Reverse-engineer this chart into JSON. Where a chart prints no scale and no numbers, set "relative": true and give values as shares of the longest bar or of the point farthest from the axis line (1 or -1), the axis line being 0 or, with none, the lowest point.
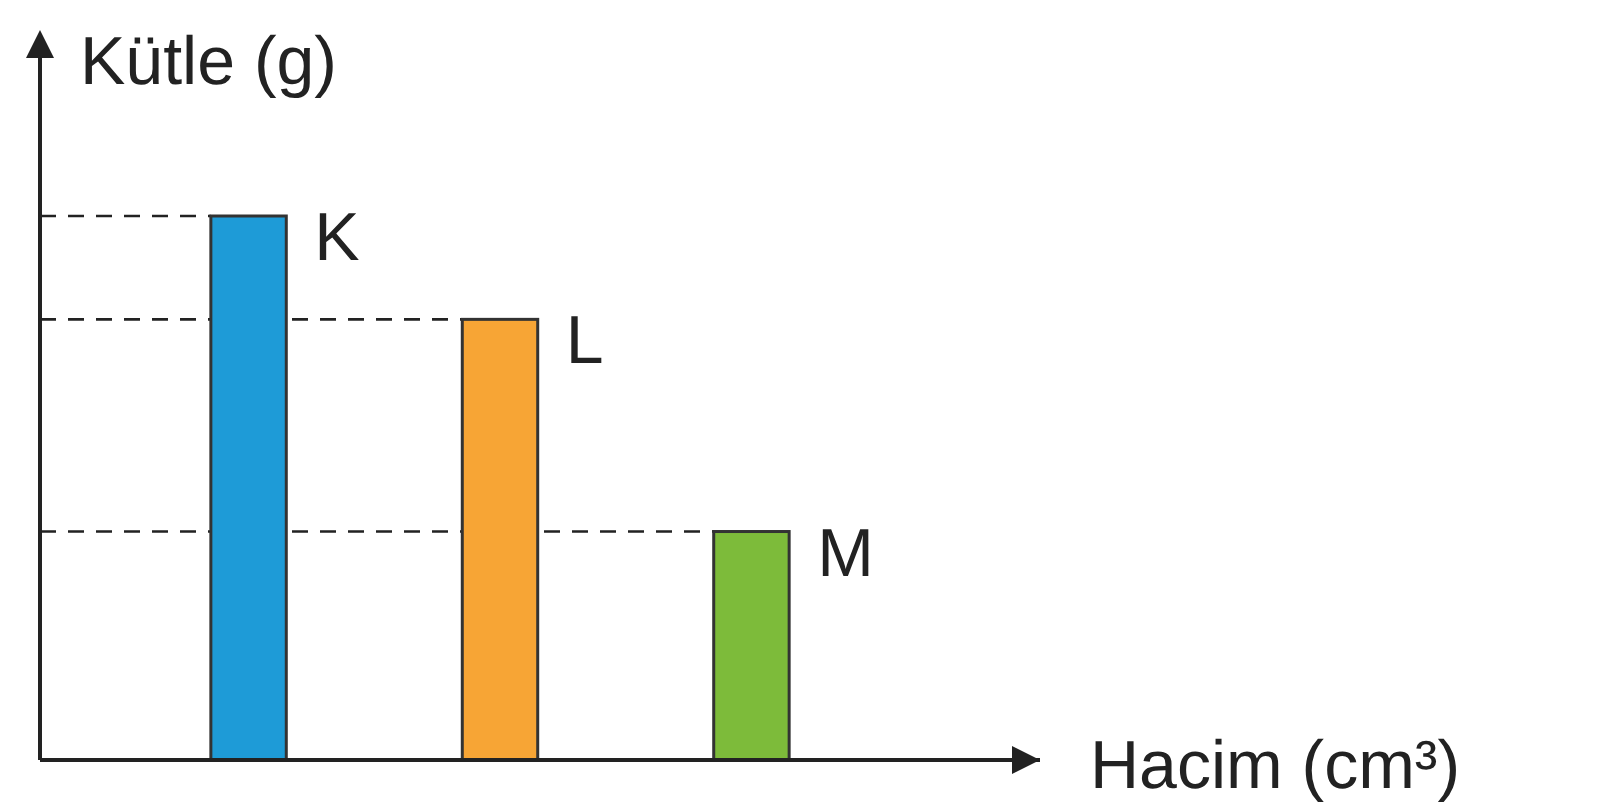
{
  "chart_data": {
    "type": "bar",
    "relative": true,
    "xlabel": "Hacim (cm³)",
    "ylabel": "Kütle (g)",
    "categories": [
      "K",
      "L",
      "M"
    ],
    "values": [
      1,
      0.81,
      0.42
    ],
    "colors": [
      "#1e9bd7",
      "#f7a535",
      "#7dbb3a"
    ],
    "ref_lines": [
      {
        "axis": "y",
        "value": 1,
        "line_style": "dashed"
      },
      {
        "axis": "y",
        "value": 0.81,
        "line_style": "dashed"
      },
      {
        "axis": "y",
        "value": 0.42,
        "line_style": "dashed"
      }
    ],
    "grid": false,
    "legend": false
  }
}
